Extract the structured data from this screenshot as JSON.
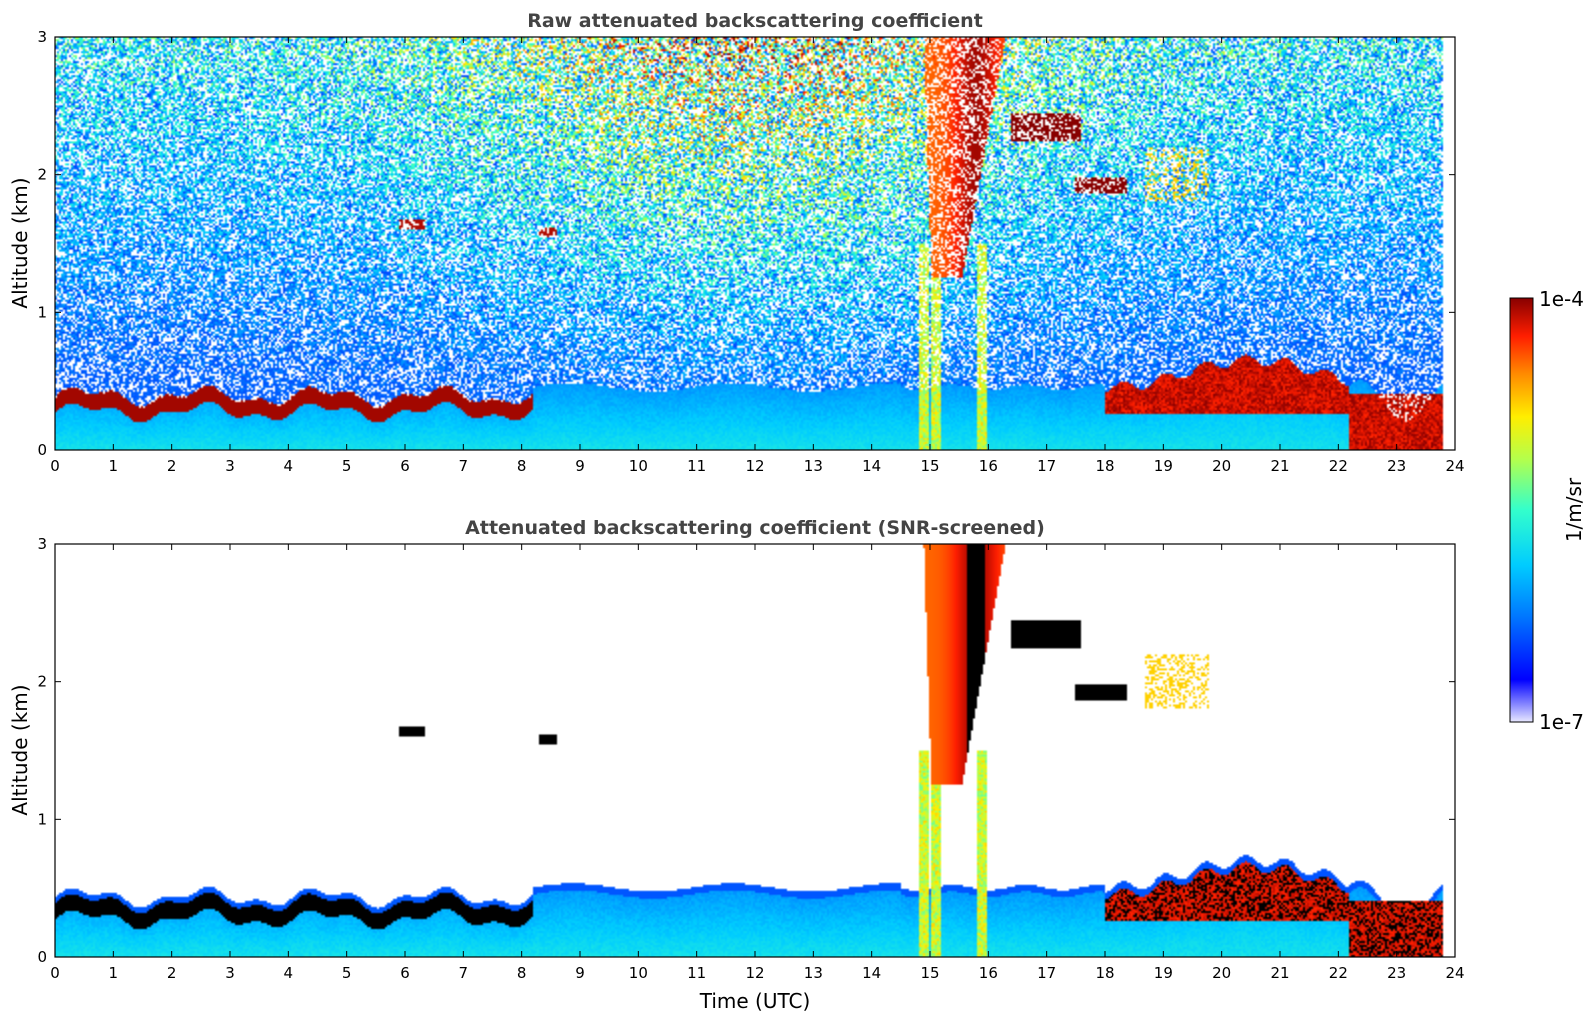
{
  "chart_data": [
    {
      "type": "heatmap",
      "title": "Raw attenuated backscattering coefficient",
      "xlabel": "",
      "ylabel": "Altitude (km)",
      "xlim": [
        0,
        24
      ],
      "ylim": [
        0,
        3
      ],
      "xticks": [
        0,
        1,
        2,
        3,
        4,
        5,
        6,
        7,
        8,
        9,
        10,
        11,
        12,
        13,
        14,
        15,
        16,
        17,
        18,
        19,
        20,
        21,
        22,
        23,
        24
      ],
      "yticks": [
        0,
        1,
        2,
        3
      ],
      "screened": false,
      "features": [
        {
          "name": "boundary-layer aerosol",
          "x": [
            0,
            8.2
          ],
          "y": [
            0.25,
            0.45
          ],
          "level": "high"
        },
        {
          "name": "elevated layer",
          "x": [
            6.0,
            6.3
          ],
          "y": [
            1.6,
            1.7
          ],
          "level": "high"
        },
        {
          "name": "elevated layer",
          "x": [
            8.3,
            8.6
          ],
          "y": [
            1.55,
            1.62
          ],
          "level": "high"
        },
        {
          "name": "cloud plume",
          "x": [
            14.0,
            16.2
          ],
          "y": [
            1.3,
            3.0
          ],
          "level": "high"
        },
        {
          "name": "cloud layer",
          "x": [
            16.4,
            17.6
          ],
          "y": [
            2.25,
            2.45
          ],
          "level": "very high"
        },
        {
          "name": "cloud layer",
          "x": [
            17.5,
            18.4
          ],
          "y": [
            1.85,
            2.0
          ],
          "level": "very high"
        },
        {
          "name": "boundary layer",
          "x": [
            18.0,
            22.2
          ],
          "y": [
            0.25,
            0.6
          ],
          "level": "high"
        },
        {
          "name": "near-surface layer",
          "x": [
            22.2,
            23.8
          ],
          "y": [
            0.0,
            0.4
          ],
          "level": "very high"
        }
      ]
    },
    {
      "type": "heatmap",
      "title": "Attenuated backscattering coefficient (SNR-screened)",
      "xlabel": "Time (UTC)",
      "ylabel": "Altitude (km)",
      "xlim": [
        0,
        24
      ],
      "ylim": [
        0,
        3
      ],
      "xticks": [
        0,
        1,
        2,
        3,
        4,
        5,
        6,
        7,
        8,
        9,
        10,
        11,
        12,
        13,
        14,
        15,
        16,
        17,
        18,
        19,
        20,
        21,
        22,
        23,
        24
      ],
      "yticks": [
        0,
        1,
        2,
        3
      ],
      "screened": true
    }
  ],
  "colorbar": {
    "label": "1/m/sr",
    "max_label": "1e-4",
    "min_label": "1e-7",
    "scale": "log",
    "range": [
      1e-07,
      0.0001
    ],
    "colors": [
      "#e8e8ff",
      "#8a8aff",
      "#0000ff",
      "#0078ff",
      "#00ccff",
      "#33ffcc",
      "#b4ff4c",
      "#ffee00",
      "#ff8c00",
      "#ff1e00",
      "#880000"
    ]
  }
}
